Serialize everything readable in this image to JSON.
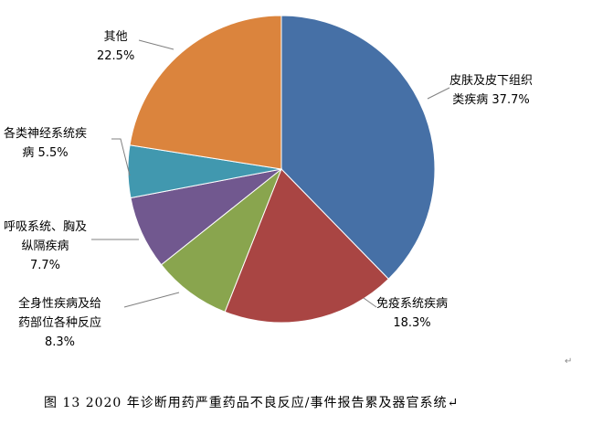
{
  "chart_data": {
    "type": "pie",
    "start_angle": "12 o'clock",
    "direction": "clockwise",
    "legend": "none",
    "slices": [
      {
        "label": [
          "皮肤及皮下组织",
          "类疾病 37.7%"
        ],
        "name": "皮肤及皮下组织类疾病",
        "value": 37.7,
        "color": "#4670a6"
      },
      {
        "label": [
          "免疫系统疾病",
          "18.3%"
        ],
        "name": "免疫系统疾病",
        "value": 18.3,
        "color": "#a94543"
      },
      {
        "label": [
          "全身性疾病及给",
          "药部位各种反应",
          "8.3%"
        ],
        "name": "全身性疾病及给药部位各种反应",
        "value": 8.3,
        "color": "#89a54e"
      },
      {
        "label": [
          "呼吸系统、胸及",
          "纵隔疾病",
          "7.7%"
        ],
        "name": "呼吸系统、胸及纵隔疾病",
        "value": 7.7,
        "color": "#71588f"
      },
      {
        "label": [
          "各类神经系统疾",
          "病 5.5%"
        ],
        "name": "各类神经系统疾病",
        "value": 5.5,
        "color": "#4198af"
      },
      {
        "label": [
          "其他",
          "22.5%"
        ],
        "name": "其他",
        "value": 22.5,
        "color": "#db843d"
      }
    ]
  },
  "caption": "图 13   2020 年诊断用药严重药品不良反应/事件报告累及器官系统↵",
  "para_mark": "↵"
}
